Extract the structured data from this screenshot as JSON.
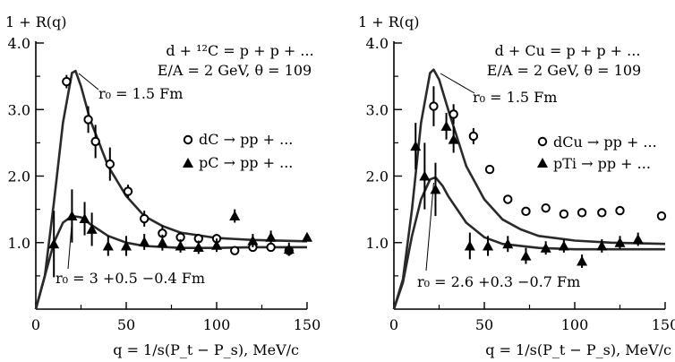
{
  "chart_data": [
    {
      "type": "scatter",
      "ylabel": "1 + R(q)",
      "xlabel": "q = 1/s(P_t − P_s), MeV/c",
      "xlim": [
        0,
        150
      ],
      "ylim": [
        0,
        4
      ],
      "x_ticks": [
        "0",
        "50",
        "100",
        "150"
      ],
      "y_ticks": [
        "1.0",
        "2.0",
        "3.0",
        "4.0"
      ],
      "reaction": "d + ¹²C = p + p + ...",
      "conditions": "E/A = 2 GeV, θ = 109",
      "annotations": [
        "r₀ = 1.5 Fm",
        "r₀ = 3 +0.5 −0.4 Fm"
      ],
      "legend_placement": "middle-right",
      "series": [
        {
          "name": "dC → pp + ...",
          "marker": "open-circle",
          "points": [
            {
              "x": 17,
              "y": 3.42,
              "err": 0.1
            },
            {
              "x": 29,
              "y": 2.85,
              "err": 0.2
            },
            {
              "x": 33,
              "y": 2.52,
              "err": 0.25
            },
            {
              "x": 41,
              "y": 2.18,
              "err": 0.25
            },
            {
              "x": 51,
              "y": 1.77,
              "err": 0.1
            },
            {
              "x": 60,
              "y": 1.36,
              "err": 0.12
            },
            {
              "x": 70,
              "y": 1.14,
              "err": 0.12
            },
            {
              "x": 80,
              "y": 1.08,
              "err": 0.08
            },
            {
              "x": 90,
              "y": 1.06,
              "err": 0.07
            },
            {
              "x": 100,
              "y": 1.06,
              "err": 0.07
            },
            {
              "x": 110,
              "y": 0.88,
              "err": 0.06
            },
            {
              "x": 120,
              "y": 0.93,
              "err": 0.06
            },
            {
              "x": 130,
              "y": 0.93,
              "err": 0.06
            },
            {
              "x": 140,
              "y": 0.88,
              "err": 0.06
            }
          ]
        },
        {
          "name": "pC → pp + ...",
          "marker": "filled-triangle",
          "points": [
            {
              "x": 10,
              "y": 0.98,
              "err": 0.5
            },
            {
              "x": 20,
              "y": 1.4,
              "err": 0.4
            },
            {
              "x": 27,
              "y": 1.36,
              "err": 0.25
            },
            {
              "x": 31,
              "y": 1.2,
              "err": 0.25
            },
            {
              "x": 40,
              "y": 0.95,
              "err": 0.15
            },
            {
              "x": 50,
              "y": 0.95,
              "err": 0.15
            },
            {
              "x": 60,
              "y": 1.01,
              "err": 0.12
            },
            {
              "x": 70,
              "y": 1.0,
              "err": 0.12
            },
            {
              "x": 80,
              "y": 0.95,
              "err": 0.1
            },
            {
              "x": 90,
              "y": 0.93,
              "err": 0.1
            },
            {
              "x": 100,
              "y": 0.96,
              "err": 0.1
            },
            {
              "x": 110,
              "y": 1.4,
              "err": 0.1
            },
            {
              "x": 120,
              "y": 1.03,
              "err": 0.1
            },
            {
              "x": 130,
              "y": 1.08,
              "err": 0.1
            },
            {
              "x": 140,
              "y": 0.9,
              "err": 0.1
            },
            {
              "x": 150,
              "y": 1.08,
              "err": 0.05
            }
          ]
        }
      ],
      "curves": [
        {
          "label": "r₀ = 1.5 Fm",
          "points": [
            [
              0,
              0
            ],
            [
              5,
              0.5
            ],
            [
              10,
              1.6
            ],
            [
              15,
              2.8
            ],
            [
              20,
              3.55
            ],
            [
              22,
              3.58
            ],
            [
              25,
              3.35
            ],
            [
              30,
              2.85
            ],
            [
              40,
              2.15
            ],
            [
              50,
              1.7
            ],
            [
              60,
              1.4
            ],
            [
              70,
              1.25
            ],
            [
              80,
              1.15
            ],
            [
              100,
              1.07
            ],
            [
              120,
              1.04
            ],
            [
              150,
              1.02
            ]
          ]
        },
        {
          "label": "r₀ = 3 +0.5 −0.4 Fm",
          "points": [
            [
              0,
              0
            ],
            [
              5,
              0.5
            ],
            [
              10,
              1.0
            ],
            [
              15,
              1.3
            ],
            [
              20,
              1.4
            ],
            [
              25,
              1.38
            ],
            [
              30,
              1.28
            ],
            [
              40,
              1.1
            ],
            [
              50,
              1.0
            ],
            [
              60,
              0.95
            ],
            [
              80,
              0.92
            ],
            [
              100,
              0.92
            ],
            [
              120,
              0.93
            ],
            [
              150,
              0.93
            ]
          ]
        }
      ]
    },
    {
      "type": "scatter",
      "ylabel": "1 + R(q)",
      "xlabel": "q = 1/s(P_t − P_s), MeV/c",
      "xlim": [
        0,
        150
      ],
      "ylim": [
        0,
        4
      ],
      "x_ticks": [
        "0",
        "50",
        "100",
        "150"
      ],
      "y_ticks": [
        "1.0",
        "2.0",
        "3.0",
        "4.0"
      ],
      "reaction": "d + Cu = p + p + ...",
      "conditions": "E/A = 2 GeV, θ = 109",
      "annotations": [
        "r₀ = 1.5 Fm",
        "r₀ = 2.6 +0.3 −0.7 Fm"
      ],
      "legend_placement": "middle-right",
      "series": [
        {
          "name": "dCu → pp + ...",
          "marker": "open-circle",
          "points": [
            {
              "x": 22,
              "y": 3.05,
              "err": 0.3
            },
            {
              "x": 33,
              "y": 2.93,
              "err": 0.15
            },
            {
              "x": 44,
              "y": 2.6,
              "err": 0.12
            },
            {
              "x": 53,
              "y": 2.1,
              "err": 0.05
            },
            {
              "x": 63,
              "y": 1.65,
              "err": 0.05
            },
            {
              "x": 73,
              "y": 1.47,
              "err": 0.04
            },
            {
              "x": 84,
              "y": 1.52,
              "err": 0.04
            },
            {
              "x": 94,
              "y": 1.43,
              "err": 0.04
            },
            {
              "x": 104,
              "y": 1.45,
              "err": 0.04
            },
            {
              "x": 115,
              "y": 1.45,
              "err": 0.04
            },
            {
              "x": 125,
              "y": 1.48,
              "err": 0.04
            },
            {
              "x": 148,
              "y": 1.4,
              "err": 0.04
            }
          ]
        },
        {
          "name": "pTi → pp + ...",
          "marker": "filled-triangle",
          "points": [
            {
              "x": 12,
              "y": 2.45,
              "err": 0.35
            },
            {
              "x": 17,
              "y": 2.0,
              "err": 0.5
            },
            {
              "x": 23,
              "y": 1.8,
              "err": 0.4
            },
            {
              "x": 29,
              "y": 2.75,
              "err": 0.2
            },
            {
              "x": 33,
              "y": 2.55,
              "err": 0.2
            },
            {
              "x": 42,
              "y": 0.95,
              "err": 0.2
            },
            {
              "x": 52,
              "y": 0.95,
              "err": 0.15
            },
            {
              "x": 63,
              "y": 0.98,
              "err": 0.12
            },
            {
              "x": 73,
              "y": 0.8,
              "err": 0.12
            },
            {
              "x": 84,
              "y": 0.92,
              "err": 0.1
            },
            {
              "x": 94,
              "y": 0.95,
              "err": 0.1
            },
            {
              "x": 104,
              "y": 0.72,
              "err": 0.1
            },
            {
              "x": 115,
              "y": 0.95,
              "err": 0.1
            },
            {
              "x": 125,
              "y": 1.0,
              "err": 0.1
            },
            {
              "x": 135,
              "y": 1.05,
              "err": 0.1
            }
          ]
        }
      ],
      "curves": [
        {
          "label": "r₀ = 1.5 Fm",
          "points": [
            [
              0,
              0
            ],
            [
              5,
              0.45
            ],
            [
              10,
              1.5
            ],
            [
              15,
              2.8
            ],
            [
              20,
              3.55
            ],
            [
              22,
              3.6
            ],
            [
              25,
              3.45
            ],
            [
              30,
              3.0
            ],
            [
              40,
              2.15
            ],
            [
              50,
              1.65
            ],
            [
              60,
              1.35
            ],
            [
              70,
              1.2
            ],
            [
              80,
              1.1
            ],
            [
              100,
              1.03
            ],
            [
              120,
              1.0
            ],
            [
              150,
              0.98
            ]
          ]
        },
        {
          "label": "r₀ = 2.6 +0.3 −0.7 Fm",
          "points": [
            [
              0,
              0
            ],
            [
              5,
              0.4
            ],
            [
              10,
              1.1
            ],
            [
              15,
              1.65
            ],
            [
              20,
              1.95
            ],
            [
              23,
              1.98
            ],
            [
              27,
              1.85
            ],
            [
              30,
              1.7
            ],
            [
              40,
              1.3
            ],
            [
              50,
              1.08
            ],
            [
              60,
              0.98
            ],
            [
              80,
              0.92
            ],
            [
              100,
              0.9
            ],
            [
              120,
              0.9
            ],
            [
              150,
              0.9
            ]
          ]
        }
      ]
    }
  ]
}
